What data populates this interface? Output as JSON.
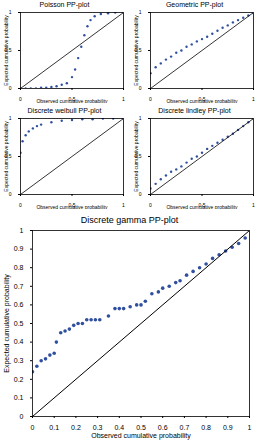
{
  "chart_data": [
    {
      "type": "scatter",
      "title": "Poisson PP-plot",
      "x_label": "Observed cumulative probability",
      "y_label": "Expected cumulative probability",
      "xlim": [
        0,
        1
      ],
      "ylim": [
        0,
        1
      ],
      "xticks": [
        0,
        0.5,
        1
      ],
      "yticks": [
        0,
        0.5,
        1
      ],
      "grid": false,
      "series": [
        {
          "type": "scatter",
          "marker": "circle",
          "color": "#2f4f9f",
          "x": [
            0,
            0.05,
            0.1,
            0.15,
            0.2,
            0.25,
            0.3,
            0.35,
            0.4,
            0.45,
            0.5,
            0.53,
            0.56,
            0.59,
            0.62,
            0.65,
            0.68,
            0.72,
            0.78,
            0.85,
            0.92,
            1
          ],
          "values": [
            0,
            0,
            0,
            0,
            0.01,
            0.01,
            0.02,
            0.03,
            0.05,
            0.07,
            0.15,
            0.25,
            0.4,
            0.55,
            0.7,
            0.82,
            0.9,
            0.95,
            0.98,
            0.99,
            1,
            1
          ]
        },
        {
          "type": "line",
          "line_style": "solid",
          "color": "#000000",
          "x": [
            0,
            1
          ],
          "values": [
            0,
            1
          ]
        }
      ]
    },
    {
      "type": "scatter",
      "title": "Geometric PP-plot",
      "x_label": "Observed cumulative probability",
      "y_label": "Expected cumulative probability",
      "xlim": [
        0,
        1
      ],
      "ylim": [
        0,
        1
      ],
      "xticks": [
        0,
        0.5,
        1
      ],
      "yticks": [
        0,
        0.5,
        1
      ],
      "grid": false,
      "series": [
        {
          "type": "scatter",
          "marker": "circle",
          "color": "#2f4f9f",
          "x": [
            0,
            0.05,
            0.1,
            0.15,
            0.2,
            0.25,
            0.3,
            0.35,
            0.4,
            0.45,
            0.5,
            0.55,
            0.6,
            0.65,
            0.7,
            0.75,
            0.8,
            0.85,
            0.9,
            0.95,
            1
          ],
          "values": [
            0.2,
            0.28,
            0.33,
            0.38,
            0.42,
            0.47,
            0.5,
            0.55,
            0.58,
            0.62,
            0.65,
            0.68,
            0.72,
            0.76,
            0.8,
            0.83,
            0.87,
            0.9,
            0.93,
            0.96,
            0.99
          ]
        },
        {
          "type": "line",
          "line_style": "solid",
          "color": "#000000",
          "x": [
            0,
            1
          ],
          "values": [
            0,
            1
          ]
        }
      ]
    },
    {
      "type": "scatter",
      "title": "Discrete weibull PP-plot",
      "x_label": "Observed cumulative probability",
      "y_label": "Expected cumulative probability",
      "xlim": [
        0,
        1
      ],
      "ylim": [
        0,
        1
      ],
      "xticks": [
        0,
        0.5,
        1
      ],
      "yticks": [
        0,
        0.5,
        1
      ],
      "grid": false,
      "series": [
        {
          "type": "scatter",
          "marker": "circle",
          "color": "#2f4f9f",
          "x": [
            0,
            0.02,
            0.05,
            0.08,
            0.12,
            0.16,
            0.2,
            0.3,
            0.4,
            0.5,
            0.6,
            0.7,
            0.8,
            0.9,
            1
          ],
          "values": [
            0.55,
            0.7,
            0.78,
            0.83,
            0.87,
            0.9,
            0.92,
            0.95,
            0.97,
            0.98,
            0.99,
            0.99,
            1,
            1,
            1
          ]
        },
        {
          "type": "line",
          "line_style": "solid",
          "color": "#000000",
          "x": [
            0,
            1
          ],
          "values": [
            0,
            1
          ]
        }
      ]
    },
    {
      "type": "scatter",
      "title": "Discrete lindley PP-plot",
      "x_label": "Observed cumulative probability",
      "y_label": "Expected cumulative probability",
      "xlim": [
        0,
        1
      ],
      "ylim": [
        0,
        1
      ],
      "xticks": [
        0,
        0.5,
        1
      ],
      "yticks": [
        0,
        0.5,
        1
      ],
      "grid": false,
      "series": [
        {
          "type": "scatter",
          "marker": "circle",
          "color": "#2f4f9f",
          "x": [
            0,
            0.05,
            0.1,
            0.15,
            0.2,
            0.25,
            0.3,
            0.35,
            0.4,
            0.45,
            0.5,
            0.55,
            0.6,
            0.65,
            0.7,
            0.75,
            0.8,
            0.85,
            0.9,
            0.95,
            1
          ],
          "values": [
            0.08,
            0.14,
            0.2,
            0.25,
            0.3,
            0.33,
            0.37,
            0.42,
            0.47,
            0.5,
            0.55,
            0.6,
            0.64,
            0.68,
            0.72,
            0.76,
            0.8,
            0.85,
            0.9,
            0.95,
            1
          ]
        },
        {
          "type": "line",
          "line_style": "solid",
          "color": "#000000",
          "x": [
            0,
            1
          ],
          "values": [
            0,
            1
          ]
        }
      ]
    },
    {
      "type": "scatter",
      "title": "Discrete gamma PP-plot",
      "x_label": "Observed cumulative probability",
      "y_label": "Expected cumulative probability",
      "xlim": [
        0,
        1
      ],
      "ylim": [
        0,
        1
      ],
      "xticks": [
        0,
        0.1,
        0.2,
        0.3,
        0.4,
        0.5,
        0.6,
        0.7,
        0.8,
        0.9,
        1
      ],
      "yticks": [
        0,
        0.1,
        0.2,
        0.3,
        0.4,
        0.5,
        0.6,
        0.7,
        0.8,
        0.9,
        1
      ],
      "grid": false,
      "series": [
        {
          "type": "scatter",
          "marker": "circle",
          "color": "#2f4f9f",
          "x": [
            0,
            0.02,
            0.04,
            0.06,
            0.08,
            0.1,
            0.11,
            0.13,
            0.15,
            0.17,
            0.19,
            0.21,
            0.23,
            0.25,
            0.27,
            0.29,
            0.31,
            0.35,
            0.38,
            0.4,
            0.42,
            0.45,
            0.48,
            0.5,
            0.52,
            0.55,
            0.58,
            0.6,
            0.63,
            0.66,
            0.68,
            0.71,
            0.74,
            0.77,
            0.8,
            0.83,
            0.86,
            0.89,
            0.92,
            0.95,
            0.98
          ],
          "values": [
            0.24,
            0.27,
            0.3,
            0.31,
            0.33,
            0.34,
            0.4,
            0.45,
            0.46,
            0.47,
            0.49,
            0.5,
            0.5,
            0.52,
            0.52,
            0.52,
            0.52,
            0.54,
            0.58,
            0.58,
            0.58,
            0.59,
            0.6,
            0.6,
            0.62,
            0.66,
            0.67,
            0.69,
            0.7,
            0.72,
            0.73,
            0.76,
            0.78,
            0.8,
            0.82,
            0.85,
            0.87,
            0.89,
            0.91,
            0.93,
            0.96
          ]
        },
        {
          "type": "line",
          "line_style": "solid",
          "color": "#000000",
          "x": [
            0,
            1
          ],
          "values": [
            0,
            1
          ]
        }
      ]
    }
  ]
}
